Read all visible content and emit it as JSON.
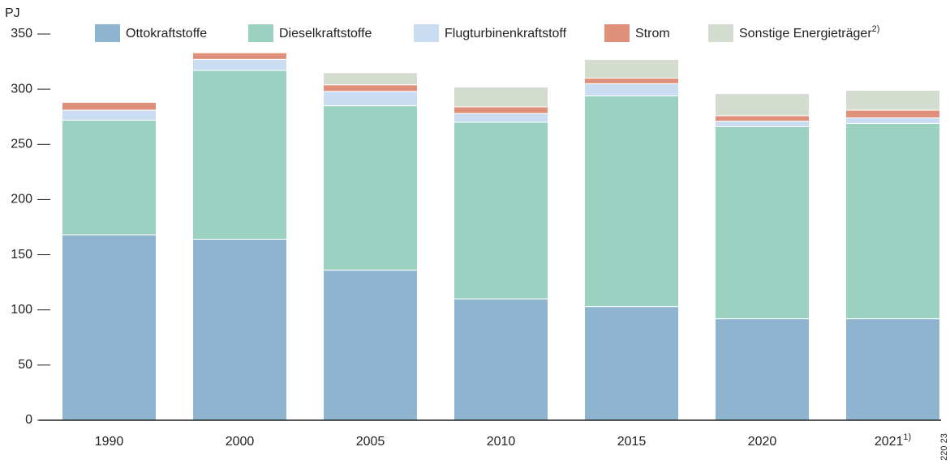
{
  "chart_data": {
    "type": "stacked_bar",
    "y_label": "PJ",
    "categories": [
      "1990",
      "2000",
      "2005",
      "2010",
      "2015",
      "2020",
      "2021"
    ],
    "category_footnote": "1)",
    "series": [
      {
        "name": "Ottokraftstoffe",
        "color": "#8fb4cf",
        "values": [
          168,
          164,
          136,
          110,
          103,
          92,
          92
        ]
      },
      {
        "name": "Dieselkraftstoffe",
        "color": "#9bd1c0",
        "values": [
          104,
          153,
          149,
          160,
          191,
          174,
          177
        ]
      },
      {
        "name": "Flugturbinenkraftstoff",
        "color": "#c9dcf2",
        "values": [
          9,
          10,
          13,
          8,
          11,
          5,
          5
        ]
      },
      {
        "name": "Strom",
        "color": "#e0907a",
        "values": [
          7,
          6,
          6,
          6,
          5,
          5,
          7
        ]
      },
      {
        "name": "Sonstige Energieträger",
        "note": "2)",
        "color": "#d4dccf",
        "values": [
          0,
          0,
          11,
          18,
          17,
          20,
          18
        ]
      }
    ],
    "ylim": [
      0,
      350
    ],
    "yticks": [
      0,
      50,
      100,
      150,
      200,
      250,
      300,
      350
    ],
    "source_code": "220 23"
  }
}
